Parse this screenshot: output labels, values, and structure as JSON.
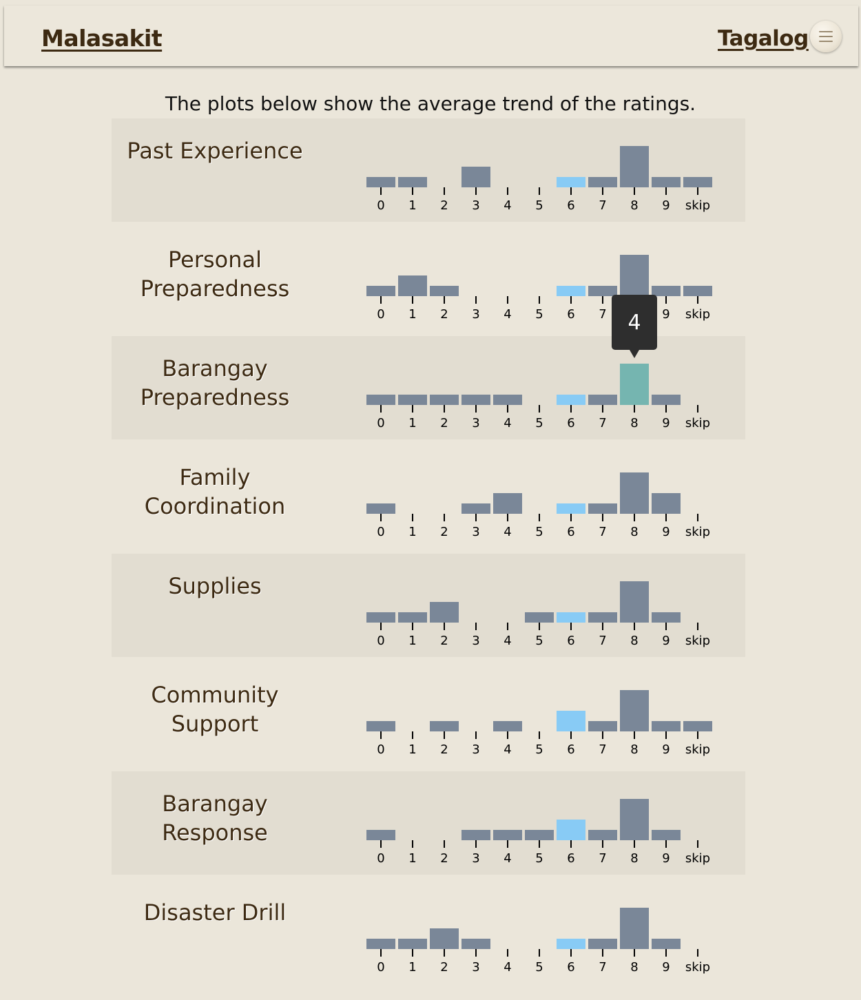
{
  "header": {
    "brand": "Malasakit",
    "language_link": "Tagalog",
    "menu_icon": "hamburger-icon"
  },
  "intro_text": "The plots below show the average trend of the ratings.",
  "tooltip": {
    "value": "4",
    "row": 2,
    "category": "8"
  },
  "colors": {
    "bar": "#7a8798",
    "highlight_bar": "#88cbf5",
    "hover_bar": "#75b5b0",
    "text_brown": "#3d2a12",
    "background": "#ebe6da",
    "shaded_row": "#e2ddd1"
  },
  "chart_data": [
    {
      "type": "bar",
      "title": "Past Experience",
      "categories": [
        "0",
        "1",
        "2",
        "3",
        "4",
        "5",
        "6",
        "7",
        "8",
        "9",
        "skip"
      ],
      "values": [
        1,
        1,
        0,
        2,
        0,
        0,
        1,
        1,
        4,
        1,
        1
      ],
      "highlight_category": "6"
    },
    {
      "type": "bar",
      "title": "Personal Preparedness",
      "categories": [
        "0",
        "1",
        "2",
        "3",
        "4",
        "5",
        "6",
        "7",
        "8",
        "9",
        "skip"
      ],
      "values": [
        1,
        2,
        1,
        0,
        0,
        0,
        1,
        1,
        4,
        1,
        1
      ],
      "highlight_category": "6"
    },
    {
      "type": "bar",
      "title": "Barangay Preparedness",
      "categories": [
        "0",
        "1",
        "2",
        "3",
        "4",
        "5",
        "6",
        "7",
        "8",
        "9",
        "skip"
      ],
      "values": [
        1,
        1,
        1,
        1,
        1,
        0,
        1,
        1,
        4,
        1,
        0
      ],
      "highlight_category": "6",
      "hover_category": "8"
    },
    {
      "type": "bar",
      "title": "Family Coordination",
      "categories": [
        "0",
        "1",
        "2",
        "3",
        "4",
        "5",
        "6",
        "7",
        "8",
        "9",
        "skip"
      ],
      "values": [
        1,
        0,
        0,
        1,
        2,
        0,
        1,
        1,
        4,
        2,
        0
      ],
      "highlight_category": "6"
    },
    {
      "type": "bar",
      "title": "Supplies",
      "categories": [
        "0",
        "1",
        "2",
        "3",
        "4",
        "5",
        "6",
        "7",
        "8",
        "9",
        "skip"
      ],
      "values": [
        1,
        1,
        2,
        0,
        0,
        1,
        1,
        1,
        4,
        1,
        0
      ],
      "highlight_category": "6"
    },
    {
      "type": "bar",
      "title": "Community Support",
      "categories": [
        "0",
        "1",
        "2",
        "3",
        "4",
        "5",
        "6",
        "7",
        "8",
        "9",
        "skip"
      ],
      "values": [
        1,
        0,
        1,
        0,
        1,
        0,
        2,
        1,
        4,
        1,
        1
      ],
      "highlight_category": "6"
    },
    {
      "type": "bar",
      "title": "Barangay Response",
      "categories": [
        "0",
        "1",
        "2",
        "3",
        "4",
        "5",
        "6",
        "7",
        "8",
        "9",
        "skip"
      ],
      "values": [
        1,
        0,
        0,
        1,
        1,
        1,
        2,
        1,
        4,
        1,
        0
      ],
      "highlight_category": "6"
    },
    {
      "type": "bar",
      "title": "Disaster Drill",
      "categories": [
        "0",
        "1",
        "2",
        "3",
        "4",
        "5",
        "6",
        "7",
        "8",
        "9",
        "skip"
      ],
      "values": [
        1,
        1,
        2,
        1,
        0,
        0,
        1,
        1,
        4,
        1,
        0
      ],
      "highlight_category": "6"
    }
  ]
}
